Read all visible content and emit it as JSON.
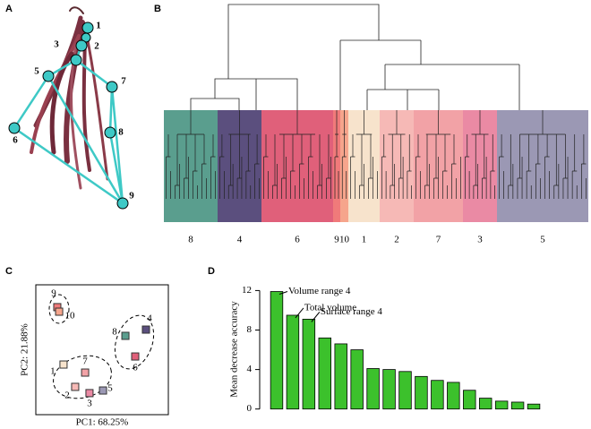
{
  "panel_labels": [
    "A",
    "B",
    "C",
    "D"
  ],
  "root_diagram": {
    "node_labels": [
      "1",
      "2",
      "3",
      "5",
      "7",
      "6",
      "8",
      "9"
    ],
    "node_color": "#3ec9c6"
  },
  "dendrogram": {
    "clusters": [
      {
        "label": "8",
        "color": "#5a9e8e"
      },
      {
        "label": "4",
        "color": "#5b4f7e"
      },
      {
        "label": "6",
        "color": "#e0607a"
      },
      {
        "label": "9",
        "color": "#f07a7a"
      },
      {
        "label": "10",
        "color": "#f6a58c"
      },
      {
        "label": "1",
        "color": "#f7e3cc"
      },
      {
        "label": "2",
        "color": "#f6b9b6"
      },
      {
        "label": "7",
        "color": "#f2a2a6"
      },
      {
        "label": "3",
        "color": "#ea8aa4"
      },
      {
        "label": "5",
        "color": "#9b98b4"
      }
    ]
  },
  "chart_data": [
    {
      "type": "scatter",
      "xlabel": "PC1: 68.25%",
      "ylabel": "PC2: 21.88%",
      "point_labels": [
        "9",
        "10",
        "8",
        "4",
        "6",
        "1",
        "7",
        "2",
        "3",
        "5"
      ],
      "x": [
        16.2,
        17.6,
        67.6,
        83.1,
        75,
        20.9,
        37.2,
        29.7,
        40.5,
        50.7
      ],
      "y": [
        82.8,
        79.3,
        60.7,
        65.5,
        44.8,
        38.6,
        32.4,
        21.4,
        16.6,
        18.6
      ],
      "colors": [
        "#f07a7a",
        "#f6a58c",
        "#5a9e8e",
        "#5b4f7e",
        "#e0607a",
        "#f7e3cc",
        "#f2a2a6",
        "#f6b9b6",
        "#ea8aa4",
        "#9b98b4"
      ],
      "xlim": [
        0,
        100
      ],
      "ylim": [
        0,
        100
      ]
    },
    {
      "type": "bar",
      "ylabel": "Mean decrease accuracy",
      "color": "#3cc12c",
      "categories": [
        null,
        null,
        null,
        null,
        null,
        null,
        null,
        null,
        null,
        null,
        null,
        null,
        null,
        null,
        null,
        null,
        null
      ],
      "values": [
        11.9,
        9.5,
        9.1,
        7.2,
        6.6,
        6.0,
        4.1,
        4.0,
        3.8,
        3.3,
        2.9,
        2.7,
        1.9,
        1.1,
        0.8,
        0.7,
        0.5
      ],
      "annotations": [
        {
          "index": 0,
          "text": "Volume range 4"
        },
        {
          "index": 1,
          "text": "Total volume"
        },
        {
          "index": 2,
          "text": "Surface range 4"
        }
      ],
      "ylim": [
        -0.3,
        12.4
      ],
      "yticks": [
        0,
        4,
        8,
        12
      ]
    }
  ]
}
